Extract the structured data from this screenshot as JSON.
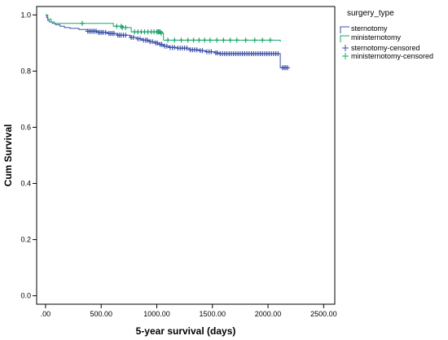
{
  "chart_data": {
    "type": "line",
    "subtype": "kaplan-meier",
    "xlabel": "5-year survival (days)",
    "ylabel": "Cum Survival",
    "xlim": [
      -80,
      2600
    ],
    "ylim": [
      -0.03,
      1.03
    ],
    "x_ticks": [
      0,
      500,
      1000,
      1500,
      2000,
      2500
    ],
    "x_tick_labels": [
      ".00",
      "500.00",
      "1000.00",
      "1500.00",
      "2000.00",
      "2500.00"
    ],
    "y_ticks": [
      0.0,
      0.2,
      0.4,
      0.6,
      0.8,
      1.0
    ],
    "y_tick_labels": [
      "0.0",
      "0.2",
      "0.4",
      "0.6",
      "0.8",
      "1.0"
    ],
    "grid": false,
    "legend": {
      "title": "surgery_type",
      "position": "top-right outside",
      "entries": [
        "sternotomy",
        "ministernotomy",
        "sternotomy-censored",
        "ministernotomy-censored"
      ]
    },
    "colors": {
      "sternotomy": "#3b4fa8",
      "ministernotomy": "#1aa56a"
    },
    "series": [
      {
        "name": "sternotomy",
        "steps": [
          [
            0,
            1.0
          ],
          [
            10,
            0.99
          ],
          [
            20,
            0.98
          ],
          [
            35,
            0.975
          ],
          [
            60,
            0.97
          ],
          [
            90,
            0.965
          ],
          [
            130,
            0.96
          ],
          [
            170,
            0.955
          ],
          [
            220,
            0.952
          ],
          [
            300,
            0.948
          ],
          [
            380,
            0.942
          ],
          [
            470,
            0.938
          ],
          [
            560,
            0.934
          ],
          [
            640,
            0.928
          ],
          [
            760,
            0.92
          ],
          [
            820,
            0.915
          ],
          [
            870,
            0.91
          ],
          [
            930,
            0.905
          ],
          [
            980,
            0.9
          ],
          [
            1020,
            0.895
          ],
          [
            1060,
            0.889
          ],
          [
            1110,
            0.884
          ],
          [
            1180,
            0.882
          ],
          [
            1290,
            0.876
          ],
          [
            1380,
            0.873
          ],
          [
            1440,
            0.869
          ],
          [
            1520,
            0.865
          ],
          [
            1560,
            0.862
          ],
          [
            2100,
            0.862
          ],
          [
            2110,
            0.812
          ],
          [
            2180,
            0.812
          ]
        ],
        "censored": [
          [
            380,
            0.942
          ],
          [
            395,
            0.942
          ],
          [
            410,
            0.942
          ],
          [
            425,
            0.942
          ],
          [
            440,
            0.942
          ],
          [
            455,
            0.942
          ],
          [
            475,
            0.938
          ],
          [
            490,
            0.938
          ],
          [
            505,
            0.938
          ],
          [
            520,
            0.938
          ],
          [
            540,
            0.938
          ],
          [
            570,
            0.934
          ],
          [
            585,
            0.934
          ],
          [
            600,
            0.934
          ],
          [
            615,
            0.934
          ],
          [
            650,
            0.928
          ],
          [
            665,
            0.928
          ],
          [
            680,
            0.928
          ],
          [
            700,
            0.928
          ],
          [
            720,
            0.928
          ],
          [
            770,
            0.92
          ],
          [
            790,
            0.92
          ],
          [
            830,
            0.915
          ],
          [
            850,
            0.915
          ],
          [
            880,
            0.91
          ],
          [
            900,
            0.91
          ],
          [
            915,
            0.91
          ],
          [
            940,
            0.905
          ],
          [
            960,
            0.905
          ],
          [
            990,
            0.9
          ],
          [
            1005,
            0.9
          ],
          [
            1030,
            0.895
          ],
          [
            1045,
            0.895
          ],
          [
            1070,
            0.889
          ],
          [
            1090,
            0.889
          ],
          [
            1120,
            0.884
          ],
          [
            1140,
            0.884
          ],
          [
            1160,
            0.884
          ],
          [
            1190,
            0.882
          ],
          [
            1210,
            0.882
          ],
          [
            1230,
            0.882
          ],
          [
            1250,
            0.882
          ],
          [
            1270,
            0.882
          ],
          [
            1300,
            0.876
          ],
          [
            1320,
            0.876
          ],
          [
            1340,
            0.876
          ],
          [
            1360,
            0.876
          ],
          [
            1390,
            0.873
          ],
          [
            1410,
            0.873
          ],
          [
            1450,
            0.869
          ],
          [
            1470,
            0.869
          ],
          [
            1490,
            0.869
          ],
          [
            1530,
            0.865
          ],
          [
            1545,
            0.865
          ],
          [
            1570,
            0.862
          ],
          [
            1590,
            0.862
          ],
          [
            1610,
            0.862
          ],
          [
            1630,
            0.862
          ],
          [
            1650,
            0.862
          ],
          [
            1670,
            0.862
          ],
          [
            1690,
            0.862
          ],
          [
            1710,
            0.862
          ],
          [
            1730,
            0.862
          ],
          [
            1750,
            0.862
          ],
          [
            1770,
            0.862
          ],
          [
            1790,
            0.862
          ],
          [
            1810,
            0.862
          ],
          [
            1830,
            0.862
          ],
          [
            1850,
            0.862
          ],
          [
            1870,
            0.862
          ],
          [
            1890,
            0.862
          ],
          [
            1910,
            0.862
          ],
          [
            1930,
            0.862
          ],
          [
            1950,
            0.862
          ],
          [
            1970,
            0.862
          ],
          [
            1990,
            0.862
          ],
          [
            2010,
            0.862
          ],
          [
            2030,
            0.862
          ],
          [
            2050,
            0.862
          ],
          [
            2070,
            0.862
          ],
          [
            2090,
            0.862
          ],
          [
            2130,
            0.812
          ],
          [
            2145,
            0.812
          ],
          [
            2160,
            0.812
          ],
          [
            2175,
            0.812
          ]
        ]
      },
      {
        "name": "ministernotomy",
        "steps": [
          [
            0,
            1.0
          ],
          [
            20,
            0.985
          ],
          [
            50,
            0.975
          ],
          [
            80,
            0.97
          ],
          [
            600,
            0.97
          ],
          [
            610,
            0.96
          ],
          [
            700,
            0.955
          ],
          [
            770,
            0.94
          ],
          [
            1000,
            0.94
          ],
          [
            1050,
            0.935
          ],
          [
            1060,
            0.91
          ],
          [
            2100,
            0.91
          ],
          [
            2110,
            0.905
          ]
        ],
        "censored": [
          [
            330,
            0.97
          ],
          [
            640,
            0.96
          ],
          [
            680,
            0.96
          ],
          [
            690,
            0.955
          ],
          [
            720,
            0.955
          ],
          [
            800,
            0.94
          ],
          [
            830,
            0.94
          ],
          [
            860,
            0.94
          ],
          [
            890,
            0.94
          ],
          [
            920,
            0.94
          ],
          [
            950,
            0.94
          ],
          [
            975,
            0.94
          ],
          [
            1000,
            0.94
          ],
          [
            1010,
            0.94
          ],
          [
            1020,
            0.94
          ],
          [
            1030,
            0.94
          ],
          [
            1040,
            0.935
          ],
          [
            1100,
            0.91
          ],
          [
            1160,
            0.91
          ],
          [
            1220,
            0.91
          ],
          [
            1280,
            0.91
          ],
          [
            1330,
            0.91
          ],
          [
            1380,
            0.91
          ],
          [
            1430,
            0.91
          ],
          [
            1480,
            0.91
          ],
          [
            1540,
            0.91
          ],
          [
            1600,
            0.91
          ],
          [
            1660,
            0.91
          ],
          [
            1720,
            0.91
          ],
          [
            1800,
            0.91
          ],
          [
            1880,
            0.91
          ],
          [
            1950,
            0.91
          ],
          [
            2020,
            0.91
          ]
        ]
      }
    ]
  }
}
